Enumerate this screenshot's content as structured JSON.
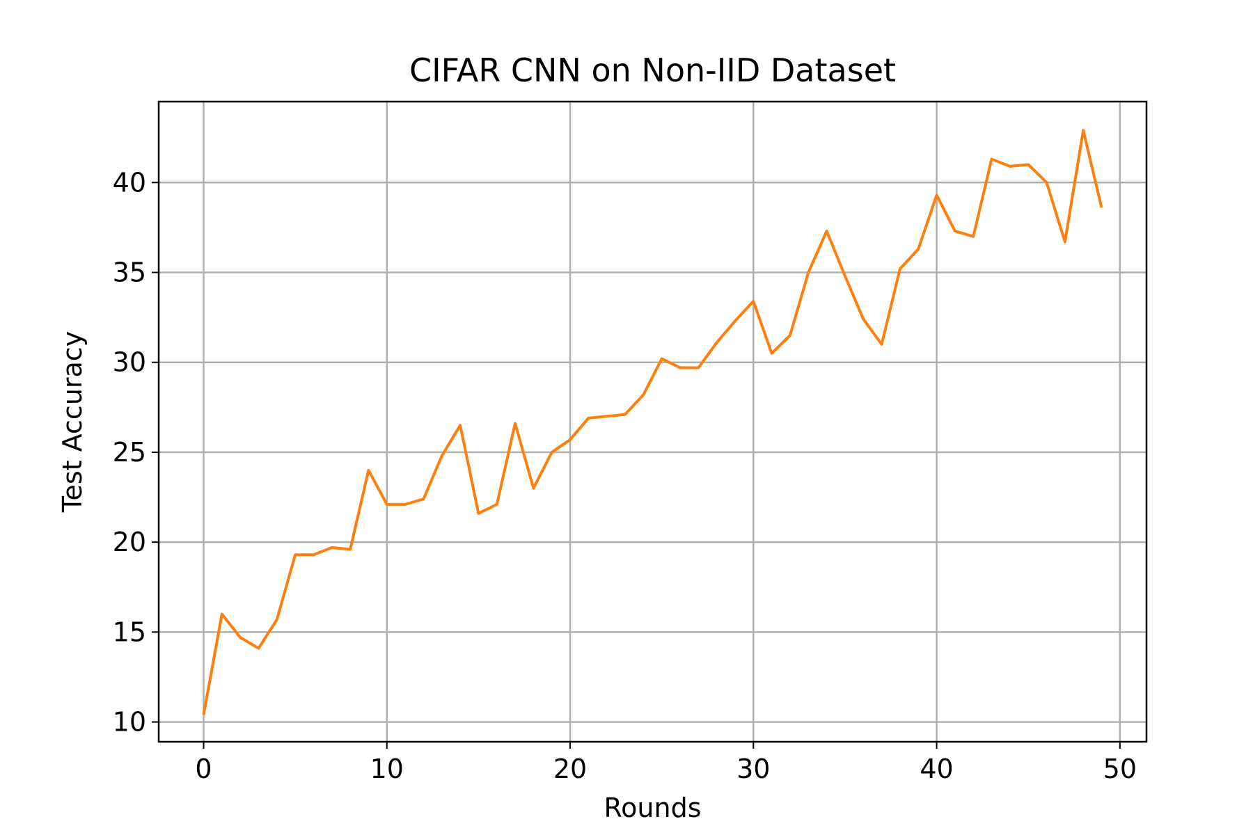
{
  "chart_data": {
    "type": "line",
    "title": "CIFAR CNN on Non-IID Dataset",
    "xlabel": "Rounds",
    "ylabel": "Test Accuracy",
    "xlim": [
      -2.45,
      51.45
    ],
    "ylim": [
      8.9,
      44.5
    ],
    "xticks": [
      0,
      10,
      20,
      30,
      40,
      50
    ],
    "yticks": [
      10,
      15,
      20,
      25,
      30,
      35,
      40
    ],
    "xtick_labels": [
      "0",
      "10",
      "20",
      "30",
      "40",
      "50"
    ],
    "ytick_labels": [
      "10",
      "15",
      "20",
      "25",
      "30",
      "35",
      "40"
    ],
    "grid": true,
    "legend": "none",
    "series": [
      {
        "color": "#ff7f0e",
        "x": [
          0,
          1,
          2,
          3,
          4,
          5,
          6,
          7,
          8,
          9,
          10,
          11,
          12,
          13,
          14,
          15,
          16,
          17,
          18,
          19,
          20,
          21,
          22,
          23,
          24,
          25,
          26,
          27,
          28,
          29,
          30,
          31,
          32,
          33,
          34,
          35,
          36,
          37,
          38,
          39,
          40,
          41,
          42,
          43,
          44,
          45,
          46,
          47,
          48,
          49
        ],
        "values": [
          10.4,
          16.0,
          14.7,
          14.1,
          15.7,
          19.3,
          19.3,
          19.7,
          19.6,
          24.0,
          22.1,
          22.1,
          22.4,
          24.8,
          26.5,
          21.6,
          22.1,
          26.6,
          23.0,
          25.0,
          25.7,
          26.9,
          27.0,
          27.1,
          28.2,
          30.2,
          29.7,
          29.7,
          31.1,
          32.3,
          33.4,
          30.5,
          31.5,
          35.0,
          37.3,
          34.8,
          32.4,
          31.0,
          35.2,
          36.3,
          39.3,
          37.3,
          37.0,
          41.3,
          40.9,
          41.0,
          40.0,
          36.7,
          42.9,
          38.6
        ]
      }
    ]
  }
}
